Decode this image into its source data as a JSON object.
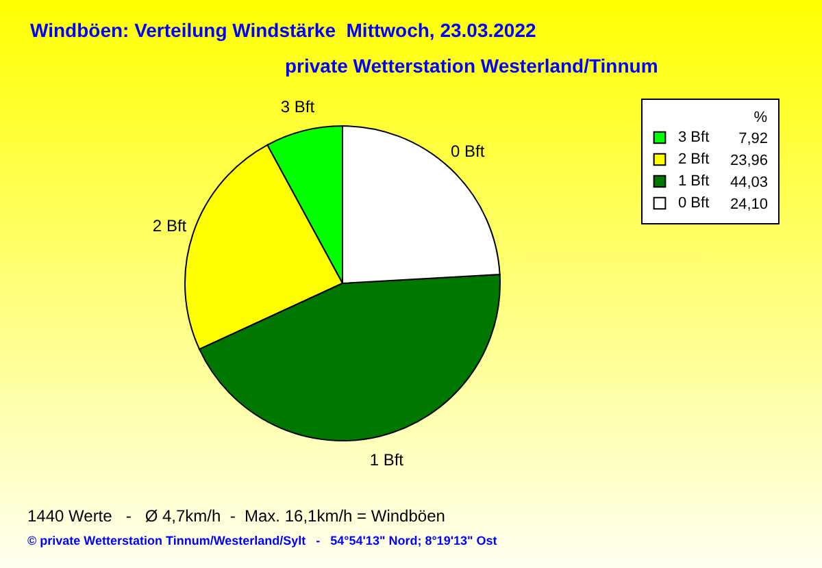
{
  "chart_data": {
    "type": "pie",
    "title": "Windböen: Verteilung Windstärke  Mittwoch, 23.03.2022",
    "subtitle": "private Wetterstation Westerland/Tinnum",
    "legend_title": "%",
    "legend": "top right",
    "categories": [
      "3 Bft",
      "2 Bft",
      "1 Bft",
      "0 Bft"
    ],
    "values": [
      7.92,
      23.96,
      44.03,
      24.1
    ],
    "value_labels": [
      "7,92",
      "23,96",
      "44,03",
      "24,10"
    ],
    "colors": [
      "#00ff00",
      "#ffff00",
      "#007800",
      "#ffffff"
    ],
    "annotations": [
      "1440 Werte   -   Ø 4,7km/h  -  Max. 16,1km/h = Windböen",
      "© private Wetterstation Tinnum/Westerland/Sylt   -   54°54'13\" Nord; 8°19'13\" Ost"
    ]
  }
}
